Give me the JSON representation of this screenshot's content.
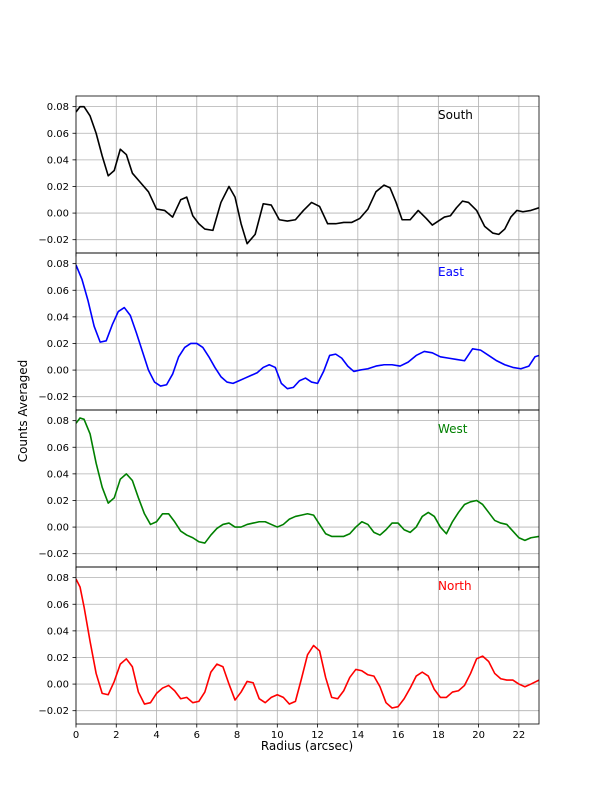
{
  "chart_data": {
    "type": "line",
    "ylabel": "Counts Averaged",
    "xlabel": "Radius (arcsec)",
    "xlim": [
      0,
      23
    ],
    "ylim": [
      -0.03,
      0.088
    ],
    "x_ticks": [
      0,
      2,
      4,
      6,
      8,
      10,
      12,
      14,
      16,
      18,
      20,
      22
    ],
    "y_ticks": [
      -0.02,
      0.0,
      0.02,
      0.04,
      0.06,
      0.08
    ],
    "grid": true,
    "sharex": true,
    "panels": [
      {
        "label": "South",
        "color": "#000000",
        "x": [
          0,
          0.2,
          0.4,
          0.7,
          1.0,
          1.3,
          1.6,
          1.9,
          2.2,
          2.5,
          2.8,
          3.2,
          3.6,
          4.0,
          4.4,
          4.8,
          5.2,
          5.5,
          5.8,
          6.1,
          6.4,
          6.8,
          7.2,
          7.6,
          7.9,
          8.2,
          8.5,
          8.9,
          9.3,
          9.7,
          10.1,
          10.5,
          10.9,
          11.3,
          11.7,
          12.1,
          12.5,
          12.9,
          13.3,
          13.7,
          14.1,
          14.5,
          14.9,
          15.3,
          15.6,
          15.9,
          16.2,
          16.6,
          17.0,
          17.4,
          17.7,
          18.0,
          18.3,
          18.6,
          18.9,
          19.2,
          19.5,
          19.9,
          20.3,
          20.7,
          21.0,
          21.3,
          21.6,
          21.9,
          22.2,
          22.6,
          23.0
        ],
        "y": [
          0.076,
          0.08,
          0.08,
          0.073,
          0.06,
          0.043,
          0.028,
          0.032,
          0.048,
          0.044,
          0.03,
          0.023,
          0.016,
          0.003,
          0.002,
          -0.003,
          0.01,
          0.012,
          -0.002,
          -0.008,
          -0.012,
          -0.013,
          0.008,
          0.02,
          0.012,
          -0.008,
          -0.023,
          -0.016,
          0.007,
          0.006,
          -0.005,
          -0.006,
          -0.005,
          0.002,
          0.008,
          0.005,
          -0.008,
          -0.008,
          -0.007,
          -0.007,
          -0.004,
          0.003,
          0.016,
          0.021,
          0.019,
          0.008,
          -0.005,
          -0.005,
          0.002,
          -0.004,
          -0.009,
          -0.006,
          -0.003,
          -0.002,
          0.004,
          0.009,
          0.008,
          0.002,
          -0.01,
          -0.015,
          -0.016,
          -0.012,
          -0.003,
          0.002,
          0.001,
          0.002,
          0.004
        ]
      },
      {
        "label": "East",
        "color": "#0000ff",
        "x": [
          0,
          0.3,
          0.6,
          0.9,
          1.2,
          1.5,
          1.8,
          2.1,
          2.4,
          2.7,
          3.0,
          3.3,
          3.6,
          3.9,
          4.2,
          4.5,
          4.8,
          5.1,
          5.4,
          5.7,
          6.0,
          6.3,
          6.6,
          6.9,
          7.2,
          7.5,
          7.8,
          8.1,
          8.4,
          8.7,
          9.0,
          9.3,
          9.6,
          9.9,
          10.2,
          10.5,
          10.8,
          11.1,
          11.4,
          11.7,
          12.0,
          12.3,
          12.6,
          12.9,
          13.2,
          13.5,
          13.8,
          14.1,
          14.5,
          14.9,
          15.3,
          15.7,
          16.1,
          16.5,
          16.9,
          17.3,
          17.7,
          18.1,
          18.5,
          18.9,
          19.3,
          19.7,
          20.1,
          20.5,
          20.9,
          21.3,
          21.7,
          22.1,
          22.5,
          22.8,
          23.0
        ],
        "y": [
          0.079,
          0.068,
          0.052,
          0.033,
          0.021,
          0.022,
          0.034,
          0.044,
          0.047,
          0.041,
          0.028,
          0.014,
          0.0,
          -0.009,
          -0.012,
          -0.011,
          -0.003,
          0.01,
          0.017,
          0.02,
          0.02,
          0.017,
          0.01,
          0.002,
          -0.005,
          -0.009,
          -0.01,
          -0.008,
          -0.006,
          -0.004,
          -0.002,
          0.002,
          0.004,
          0.002,
          -0.01,
          -0.014,
          -0.013,
          -0.008,
          -0.006,
          -0.009,
          -0.01,
          -0.001,
          0.011,
          0.012,
          0.009,
          0.003,
          -0.001,
          0.0,
          0.001,
          0.003,
          0.004,
          0.004,
          0.003,
          0.006,
          0.011,
          0.014,
          0.013,
          0.01,
          0.009,
          0.008,
          0.007,
          0.016,
          0.015,
          0.011,
          0.007,
          0.004,
          0.002,
          0.001,
          0.003,
          0.01,
          0.011
        ]
      },
      {
        "label": "West",
        "color": "#008000",
        "x": [
          0,
          0.2,
          0.4,
          0.7,
          1.0,
          1.3,
          1.6,
          1.9,
          2.2,
          2.5,
          2.8,
          3.1,
          3.4,
          3.7,
          4.0,
          4.3,
          4.6,
          4.9,
          5.2,
          5.5,
          5.8,
          6.1,
          6.4,
          6.7,
          7.0,
          7.3,
          7.6,
          7.9,
          8.2,
          8.5,
          8.8,
          9.1,
          9.4,
          9.7,
          10.0,
          10.3,
          10.6,
          10.9,
          11.2,
          11.5,
          11.8,
          12.1,
          12.4,
          12.7,
          13.0,
          13.3,
          13.6,
          13.9,
          14.2,
          14.5,
          14.8,
          15.1,
          15.4,
          15.7,
          16.0,
          16.3,
          16.6,
          16.9,
          17.2,
          17.5,
          17.8,
          18.1,
          18.4,
          18.7,
          19.0,
          19.3,
          19.6,
          19.9,
          20.2,
          20.5,
          20.8,
          21.1,
          21.4,
          21.7,
          22.0,
          22.3,
          22.6,
          23.0
        ],
        "y": [
          0.078,
          0.082,
          0.081,
          0.07,
          0.048,
          0.03,
          0.018,
          0.022,
          0.036,
          0.04,
          0.035,
          0.022,
          0.01,
          0.002,
          0.004,
          0.01,
          0.01,
          0.004,
          -0.003,
          -0.006,
          -0.008,
          -0.011,
          -0.012,
          -0.006,
          -0.001,
          0.002,
          0.003,
          0.0,
          0.0,
          0.002,
          0.003,
          0.004,
          0.004,
          0.002,
          0.0,
          0.002,
          0.006,
          0.008,
          0.009,
          0.01,
          0.009,
          0.002,
          -0.005,
          -0.007,
          -0.007,
          -0.007,
          -0.005,
          0.0,
          0.004,
          0.002,
          -0.004,
          -0.006,
          -0.002,
          0.003,
          0.003,
          -0.002,
          -0.004,
          0.0,
          0.008,
          0.011,
          0.008,
          0.0,
          -0.005,
          0.004,
          0.011,
          0.017,
          0.019,
          0.02,
          0.017,
          0.011,
          0.005,
          0.003,
          0.002,
          -0.003,
          -0.008,
          -0.01,
          -0.008,
          -0.007
        ]
      },
      {
        "label": "North",
        "color": "#ff0000",
        "x": [
          0,
          0.2,
          0.4,
          0.7,
          1.0,
          1.3,
          1.6,
          1.9,
          2.2,
          2.5,
          2.8,
          3.1,
          3.4,
          3.7,
          4.0,
          4.3,
          4.6,
          4.9,
          5.2,
          5.5,
          5.8,
          6.1,
          6.4,
          6.7,
          7.0,
          7.3,
          7.6,
          7.9,
          8.2,
          8.5,
          8.8,
          9.1,
          9.4,
          9.7,
          10.0,
          10.3,
          10.6,
          10.9,
          11.2,
          11.5,
          11.8,
          12.1,
          12.4,
          12.7,
          13.0,
          13.3,
          13.6,
          13.9,
          14.2,
          14.5,
          14.8,
          15.1,
          15.4,
          15.7,
          16.0,
          16.3,
          16.6,
          16.9,
          17.2,
          17.5,
          17.8,
          18.1,
          18.4,
          18.7,
          19.0,
          19.3,
          19.6,
          19.9,
          20.2,
          20.5,
          20.8,
          21.1,
          21.4,
          21.7,
          22.0,
          22.3,
          22.6,
          23.0
        ],
        "y": [
          0.079,
          0.073,
          0.058,
          0.032,
          0.008,
          -0.007,
          -0.008,
          0.002,
          0.015,
          0.019,
          0.013,
          -0.006,
          -0.015,
          -0.014,
          -0.007,
          -0.003,
          -0.001,
          -0.005,
          -0.011,
          -0.01,
          -0.014,
          -0.013,
          -0.006,
          0.009,
          0.015,
          0.013,
          0.0,
          -0.012,
          -0.006,
          0.002,
          0.001,
          -0.011,
          -0.014,
          -0.01,
          -0.008,
          -0.01,
          -0.015,
          -0.013,
          0.004,
          0.022,
          0.029,
          0.025,
          0.005,
          -0.01,
          -0.011,
          -0.005,
          0.005,
          0.011,
          0.01,
          0.007,
          0.006,
          -0.002,
          -0.014,
          -0.018,
          -0.017,
          -0.011,
          -0.003,
          0.006,
          0.009,
          0.006,
          -0.004,
          -0.01,
          -0.01,
          -0.006,
          -0.005,
          -0.001,
          0.008,
          0.019,
          0.021,
          0.017,
          0.008,
          0.004,
          0.003,
          0.003,
          0.0,
          -0.002,
          0.0,
          0.003
        ]
      }
    ]
  }
}
